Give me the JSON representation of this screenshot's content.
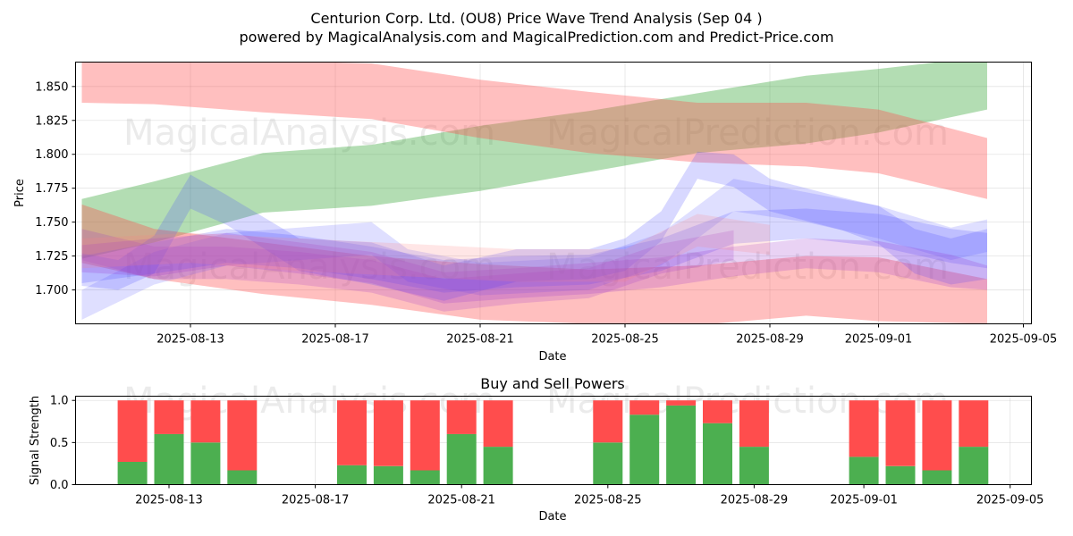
{
  "header": {
    "title_line1": "Centurion Corp. Ltd. (OU8) Price Wave Trend Analysis (Sep 04 )",
    "title_line2": "powered by MagicalAnalysis.com and MagicalPrediction.com and Predict-Price.com"
  },
  "watermarks": {
    "left": "MagicalAnalysis.com",
    "right": "MagicalPrediction.com"
  },
  "colors": {
    "green_band": "#2ca02c",
    "red_band": "#ff4d4d",
    "blue_band": "#4d4dff",
    "buy": "#4caf50",
    "sell": "#ff4d4d"
  },
  "chart_data": [
    {
      "type": "area",
      "title": "",
      "xlabel": "Date",
      "ylabel": "Price",
      "xlim": [
        "2025-08-10",
        "2025-09-05"
      ],
      "ylim": [
        1.675,
        1.868
      ],
      "x_ticks": [
        "2025-08-13",
        "2025-08-17",
        "2025-08-21",
        "2025-08-25",
        "2025-08-29",
        "2025-09-01",
        "2025-09-05"
      ],
      "y_ticks": [
        "1.700",
        "1.725",
        "1.750",
        "1.775",
        "1.800",
        "1.825",
        "1.850"
      ],
      "bands": [
        {
          "name": "green-upper-band",
          "color": "green",
          "opacity": 0.36,
          "x": [
            "2025-08-10",
            "2025-08-12",
            "2025-08-15",
            "2025-08-18",
            "2025-08-21",
            "2025-08-24",
            "2025-08-27",
            "2025-08-30",
            "2025-09-01",
            "2025-09-04"
          ],
          "upper": [
            1.767,
            1.78,
            1.801,
            1.807,
            1.821,
            1.832,
            1.845,
            1.858,
            1.863,
            1.872
          ],
          "lower": [
            1.723,
            1.735,
            1.757,
            1.762,
            1.773,
            1.787,
            1.801,
            1.808,
            1.816,
            1.833
          ]
        },
        {
          "name": "red-upper-band",
          "color": "red",
          "opacity": 0.36,
          "x": [
            "2025-08-10",
            "2025-08-12",
            "2025-08-15",
            "2025-08-18",
            "2025-08-21",
            "2025-08-24",
            "2025-08-27",
            "2025-08-30",
            "2025-09-01",
            "2025-09-04"
          ],
          "upper": [
            1.869,
            1.869,
            1.869,
            1.867,
            1.855,
            1.846,
            1.838,
            1.838,
            1.833,
            1.812
          ],
          "lower": [
            1.838,
            1.837,
            1.831,
            1.826,
            1.812,
            1.801,
            1.794,
            1.791,
            1.786,
            1.767
          ]
        },
        {
          "name": "red-lower-band",
          "color": "red",
          "opacity": 0.36,
          "x": [
            "2025-08-10",
            "2025-08-12",
            "2025-08-15",
            "2025-08-18",
            "2025-08-21",
            "2025-08-24",
            "2025-08-27",
            "2025-08-30",
            "2025-09-01",
            "2025-09-04"
          ],
          "upper": [
            1.763,
            1.745,
            1.735,
            1.725,
            1.719,
            1.715,
            1.718,
            1.725,
            1.724,
            1.708
          ],
          "lower": [
            1.72,
            1.708,
            1.697,
            1.689,
            1.678,
            1.675,
            1.674,
            1.681,
            1.677,
            1.675
          ]
        },
        {
          "name": "blue-band-1",
          "color": "blue",
          "opacity": 0.22,
          "x": [
            "2025-08-10",
            "2025-08-11",
            "2025-08-12",
            "2025-08-13",
            "2025-08-14",
            "2025-08-16",
            "2025-08-18",
            "2025-08-20",
            "2025-08-22",
            "2025-08-24",
            "2025-08-25",
            "2025-08-26",
            "2025-08-27",
            "2025-08-28",
            "2025-08-29",
            "2025-08-31",
            "2025-09-01",
            "2025-09-02",
            "2025-09-03",
            "2025-09-04"
          ],
          "upper": [
            1.727,
            1.722,
            1.74,
            1.785,
            1.77,
            1.738,
            1.735,
            1.718,
            1.73,
            1.73,
            1.738,
            1.758,
            1.802,
            1.8,
            1.782,
            1.768,
            1.762,
            1.745,
            1.738,
            1.745
          ],
          "lower": [
            1.703,
            1.7,
            1.712,
            1.76,
            1.748,
            1.714,
            1.704,
            1.692,
            1.706,
            1.708,
            1.714,
            1.736,
            1.782,
            1.776,
            1.758,
            1.744,
            1.734,
            1.712,
            1.704,
            1.708
          ]
        },
        {
          "name": "blue-band-2",
          "color": "blue",
          "opacity": 0.22,
          "x": [
            "2025-08-10",
            "2025-08-12",
            "2025-08-14",
            "2025-08-16",
            "2025-08-18",
            "2025-08-20",
            "2025-08-22",
            "2025-08-24",
            "2025-08-26",
            "2025-08-28",
            "2025-08-30",
            "2025-09-01",
            "2025-09-03",
            "2025-09-04"
          ],
          "upper": [
            1.725,
            1.735,
            1.745,
            1.74,
            1.732,
            1.722,
            1.725,
            1.726,
            1.738,
            1.758,
            1.76,
            1.756,
            1.745,
            1.742
          ],
          "lower": [
            1.705,
            1.712,
            1.72,
            1.716,
            1.708,
            1.698,
            1.702,
            1.704,
            1.714,
            1.734,
            1.738,
            1.732,
            1.72,
            1.716
          ]
        },
        {
          "name": "blue-band-3",
          "color": "blue",
          "opacity": 0.18,
          "x": [
            "2025-08-10",
            "2025-08-12",
            "2025-08-14",
            "2025-08-16",
            "2025-08-18",
            "2025-08-19",
            "2025-08-21",
            "2025-08-24",
            "2025-08-26",
            "2025-08-28",
            "2025-08-30",
            "2025-09-01",
            "2025-09-03",
            "2025-09-04"
          ],
          "upper": [
            1.7,
            1.728,
            1.742,
            1.746,
            1.75,
            1.73,
            1.72,
            1.724,
            1.742,
            1.782,
            1.772,
            1.762,
            1.746,
            1.752
          ],
          "lower": [
            1.678,
            1.704,
            1.718,
            1.722,
            1.726,
            1.706,
            1.696,
            1.7,
            1.718,
            1.758,
            1.75,
            1.738,
            1.722,
            1.728
          ]
        },
        {
          "name": "purple-band-1",
          "color": "purple",
          "opacity": 0.22,
          "x": [
            "2025-08-10",
            "2025-08-12",
            "2025-08-14",
            "2025-08-16",
            "2025-08-18",
            "2025-08-20",
            "2025-08-22",
            "2025-08-24",
            "2025-08-26",
            "2025-08-28",
            "2025-08-30",
            "2025-09-01",
            "2025-09-03",
            "2025-09-04"
          ],
          "upper": [
            1.733,
            1.738,
            1.742,
            1.735,
            1.728,
            1.713,
            1.716,
            1.72,
            1.724,
            1.732,
            1.738,
            1.736,
            1.726,
            1.718
          ],
          "lower": [
            1.713,
            1.71,
            1.718,
            1.712,
            1.705,
            1.69,
            1.694,
            1.697,
            1.702,
            1.71,
            1.716,
            1.713,
            1.702,
            1.7
          ]
        },
        {
          "name": "purple-band-2",
          "color": "purple",
          "opacity": 0.2,
          "x": [
            "2025-08-10",
            "2025-08-12",
            "2025-08-14",
            "2025-08-16",
            "2025-08-18",
            "2025-08-20",
            "2025-08-22",
            "2025-08-24",
            "2025-08-26",
            "2025-08-28"
          ],
          "upper": [
            1.745,
            1.732,
            1.732,
            1.728,
            1.722,
            1.708,
            1.712,
            1.716,
            1.734,
            1.744
          ],
          "lower": [
            1.722,
            1.708,
            1.708,
            1.704,
            1.698,
            1.684,
            1.69,
            1.694,
            1.712,
            1.722
          ]
        },
        {
          "name": "pink-band",
          "color": "pink",
          "opacity": 0.2,
          "x": [
            "2025-08-10",
            "2025-08-13",
            "2025-08-16",
            "2025-08-19",
            "2025-08-22",
            "2025-08-25",
            "2025-08-27",
            "2025-08-29"
          ],
          "upper": [
            1.738,
            1.742,
            1.738,
            1.734,
            1.73,
            1.73,
            1.756,
            1.748
          ],
          "lower": [
            1.716,
            1.72,
            1.714,
            1.71,
            1.706,
            1.706,
            1.732,
            1.726
          ]
        }
      ]
    },
    {
      "type": "bar",
      "title": "Buy and Sell Powers",
      "xlabel": "Date",
      "ylabel": "Signal Strength",
      "xlim": [
        "2025-08-10",
        "2025-09-05"
      ],
      "ylim": [
        0,
        1.05
      ],
      "x_ticks": [
        "2025-08-13",
        "2025-08-17",
        "2025-08-21",
        "2025-08-25",
        "2025-08-29",
        "2025-09-01",
        "2025-09-05"
      ],
      "y_ticks": [
        "0.0",
        "0.5",
        "1.0"
      ],
      "categories": [
        "2025-08-12",
        "2025-08-13",
        "2025-08-14",
        "2025-08-15",
        "2025-08-18",
        "2025-08-19",
        "2025-08-20",
        "2025-08-21",
        "2025-08-22",
        "2025-08-25",
        "2025-08-26",
        "2025-08-27",
        "2025-08-28",
        "2025-08-29",
        "2025-09-01",
        "2025-09-02",
        "2025-09-03",
        "2025-09-04"
      ],
      "series": [
        {
          "name": "Buy",
          "values": [
            0.27,
            0.6,
            0.5,
            0.17,
            0.23,
            0.22,
            0.17,
            0.6,
            0.45,
            0.5,
            0.83,
            0.94,
            0.73,
            0.45,
            0.33,
            0.22,
            0.17,
            0.45
          ]
        },
        {
          "name": "Sell",
          "values": [
            0.73,
            0.4,
            0.5,
            0.83,
            0.77,
            0.78,
            0.83,
            0.4,
            0.55,
            0.5,
            0.17,
            0.06,
            0.27,
            0.55,
            0.67,
            0.78,
            0.83,
            0.55
          ]
        }
      ]
    }
  ]
}
